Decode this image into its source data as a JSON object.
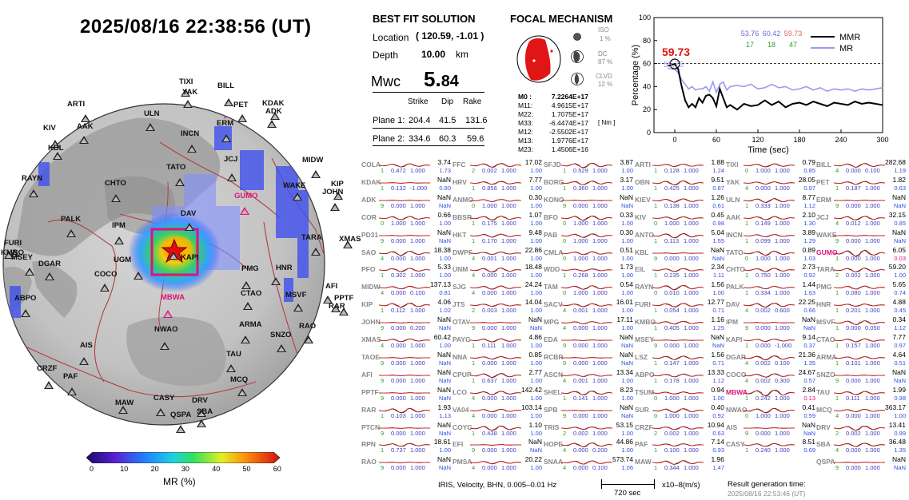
{
  "header": {
    "timestamp": "2025/08/16  22:38:56 (UT)"
  },
  "best_fit": {
    "title": "BEST FIT SOLUTION",
    "location_label": "Location",
    "location_value": "( 120.59,  -1.01 )",
    "depth_label": "Depth",
    "depth_value": "10.00",
    "depth_unit": "km",
    "mw_label": "Mwc",
    "mw_int": "5.",
    "mw_dec": "84",
    "col_strike": "Strike",
    "col_dip": "Dip",
    "col_rake": "Rake",
    "plane1_label": "Plane 1:",
    "plane1": [
      "204.4",
      "41.5",
      "131.6"
    ],
    "plane2_label": "Plane 2:",
    "plane2": [
      "334.6",
      "60.3",
      "59.6"
    ]
  },
  "focal": {
    "title": "FOCAL MECHANISM",
    "iso_label": "ISO",
    "iso_value": "1  %",
    "dc_label": "DC",
    "dc_value": "87 %",
    "clvd_label": "CLVD",
    "clvd_value": "12 %",
    "tensor": [
      {
        "k": "M0  :",
        "v": "7.2264E+17"
      },
      {
        "k": "M11:",
        "v": "4.9615E+17"
      },
      {
        "k": "M22:",
        "v": "1.7075E+17"
      },
      {
        "k": "M33:",
        "v": "-6.4474E+17"
      },
      {
        "k": "M12:",
        "v": "-2.5502E+17"
      },
      {
        "k": "M13:",
        "v": "1.9776E+17"
      },
      {
        "k": "M23:",
        "v": "1.4506E+16"
      }
    ],
    "unit": "[ Nm ]"
  },
  "mr_chart": {
    "peak_label": "59.73",
    "peak_sub": "53.76",
    "stats": [
      "53.76",
      "60.42",
      "59.73"
    ],
    "stats2": [
      "17",
      "18",
      "47"
    ],
    "legend_mmr": "MMR",
    "legend_mr": "MR",
    "colors": {
      "mmr": "#000000",
      "mr": "#9a9af0",
      "peak": "#e01010"
    }
  },
  "chart_data": {
    "type": "line",
    "xlabel": "Time (sec)",
    "ylabel": "Percentage (%)",
    "xlim": [
      -30,
      300
    ],
    "ylim": [
      0,
      100
    ],
    "xticks": [
      "0",
      "60",
      "120",
      "180",
      "240",
      "300"
    ],
    "yticks": [
      "0",
      "20",
      "40",
      "60",
      "80",
      "100"
    ],
    "reference_line": 60,
    "series": [
      {
        "name": "MMR",
        "x": [
          -10,
          0,
          5,
          10,
          15,
          20,
          25,
          30,
          35,
          40,
          45,
          50,
          55,
          60,
          65,
          70,
          75,
          80,
          90,
          100,
          110,
          120,
          130,
          140,
          150,
          160,
          170,
          180,
          190,
          200,
          210,
          220,
          230,
          240,
          250,
          260,
          270,
          280,
          290,
          300
        ],
        "y": [
          58,
          59.7,
          55,
          40,
          28,
          22,
          25,
          22,
          30,
          26,
          32,
          33,
          30,
          23,
          38,
          30,
          22,
          24,
          20,
          25,
          23,
          24,
          28,
          24,
          27,
          22,
          25,
          26,
          24,
          27,
          25,
          23,
          26,
          25,
          24,
          27,
          25,
          26,
          25,
          24
        ]
      },
      {
        "name": "MR",
        "x": [
          -10,
          0,
          5,
          10,
          15,
          20,
          25,
          30,
          35,
          40,
          45,
          50,
          55,
          60,
          65,
          70,
          75,
          80,
          90,
          100,
          110,
          120,
          130,
          140,
          150,
          160,
          170,
          180,
          190,
          200,
          210,
          220,
          230,
          240,
          250,
          260,
          270,
          280,
          290,
          300
        ],
        "y": [
          56,
          55,
          52,
          46,
          42,
          38,
          40,
          37,
          38,
          38,
          40,
          36,
          44,
          35,
          42,
          44,
          37,
          40,
          41,
          40,
          42,
          38,
          39,
          42,
          39,
          40,
          37,
          38,
          40,
          37,
          39,
          36,
          38,
          37,
          38,
          36,
          38,
          37,
          38,
          39
        ]
      }
    ]
  },
  "colorbar": {
    "label": "MR (%)",
    "ticks": [
      "0",
      "10",
      "20",
      "30",
      "40",
      "50",
      "60"
    ]
  },
  "map": {
    "stations": [
      {
        "name": "TIXI"
      },
      {
        "name": "YAK"
      },
      {
        "name": "BILL"
      },
      {
        "name": "PET"
      },
      {
        "name": "KDAK"
      },
      {
        "name": "ADK"
      },
      {
        "name": "ARTI"
      },
      {
        "name": "ULN"
      },
      {
        "name": "ERM"
      },
      {
        "name": "KIV"
      },
      {
        "name": "AAK"
      },
      {
        "name": "KBL"
      },
      {
        "name": "INCN"
      },
      {
        "name": "JCJ"
      },
      {
        "name": "MIDW"
      },
      {
        "name": "TATO"
      },
      {
        "name": "RAYN"
      },
      {
        "name": "CHTO"
      },
      {
        "name": "GUMO"
      },
      {
        "name": "WAKE"
      },
      {
        "name": "JOHN"
      },
      {
        "name": "KIP"
      },
      {
        "name": "DAV"
      },
      {
        "name": "PALK"
      },
      {
        "name": "FURI"
      },
      {
        "name": "IPM"
      },
      {
        "name": "TARA"
      },
      {
        "name": "XMAS"
      },
      {
        "name": "KMBO"
      },
      {
        "name": "MSEY"
      },
      {
        "name": "DGAR"
      },
      {
        "name": "UGM"
      },
      {
        "name": "KAPI"
      },
      {
        "name": "PMG"
      },
      {
        "name": "HNR"
      },
      {
        "name": "COCO"
      },
      {
        "name": "AFI"
      },
      {
        "name": "RAR"
      },
      {
        "name": "PPTF"
      },
      {
        "name": "MSVF"
      },
      {
        "name": "CTAO"
      },
      {
        "name": "MBWA"
      },
      {
        "name": "ABPO"
      },
      {
        "name": "NWAO"
      },
      {
        "name": "ARMA"
      },
      {
        "name": "RAO"
      },
      {
        "name": "AIS"
      },
      {
        "name": "SNZO"
      },
      {
        "name": "TAU"
      },
      {
        "name": "CRZF"
      },
      {
        "name": "PAF"
      },
      {
        "name": "MCQ"
      },
      {
        "name": "MAW"
      },
      {
        "name": "CASY"
      },
      {
        "name": "DRV"
      },
      {
        "name": "SBA"
      },
      {
        "name": "QSPA"
      }
    ]
  },
  "footer": {
    "source": "IRIS,  Velocity,   BHN,  0.005–0.01 Hz",
    "scale_time": "720 sec",
    "scale_amp": "x10–8(m/s)",
    "result_label": "Result generation time:",
    "result_time": "2025/08/16 22:53:46 (UT)"
  },
  "traces": [
    [
      [
        "COLA",
        "3.74",
        "1",
        "0.472",
        "1.000",
        "1.73"
      ],
      [
        "KDAK",
        "NaN",
        "1",
        "0.132",
        "-1.000",
        "0.80"
      ],
      [
        "ADK",
        "NaN",
        "9",
        "0.000",
        "1.000",
        "NaN"
      ],
      [
        "COR",
        "0.66",
        "0",
        "1.000",
        "1.000",
        "1.00"
      ],
      [
        "PD31",
        "NaN",
        "9",
        "0.000",
        "1.000",
        "NaN"
      ],
      [
        "SAO",
        "18.38",
        "4",
        "0.000",
        "1.000",
        "1.00"
      ],
      [
        "PFO",
        "5.33",
        "1",
        "0.302",
        "1.000",
        "1.00"
      ],
      [
        "MIDW",
        "137.13",
        "4",
        "0.000",
        "0.100",
        "0.81"
      ],
      [
        "KIP",
        "4.06",
        "1",
        "0.112",
        "1.000",
        "1.02"
      ],
      [
        "JOHN",
        "NaN",
        "9",
        "0.000",
        "0.200",
        "NaN"
      ],
      [
        "XMAS",
        "60.42",
        "4",
        "0.000",
        "1.000",
        "1.00"
      ],
      [
        "TAOE",
        "NaN",
        "9",
        "0.000",
        "1.000",
        "NaN"
      ],
      [
        "AFI",
        "NaN",
        "9",
        "0.000",
        "1.000",
        "NaN"
      ],
      [
        "PPTF",
        "NaN",
        "9",
        "0.000",
        "1.000",
        "NaN"
      ],
      [
        "RAR",
        "1.93",
        "1",
        "0.103",
        "1.000",
        "1.13"
      ],
      [
        "PTCN",
        "NaN",
        "9",
        "0.000",
        "1.000",
        "NaN"
      ],
      [
        "RPN",
        "18.61",
        "1",
        "0.737",
        "1.000",
        "1.00"
      ],
      [
        "RAO",
        "NaN",
        "9",
        "0.000",
        "1.000",
        "NaN"
      ]
    ],
    [
      [
        "FFC",
        "17.02",
        "2",
        "0.002",
        "1.000",
        "1.00"
      ],
      [
        "HRV",
        "7.77",
        "1",
        "0.856",
        "1.000",
        "1.00"
      ],
      [
        "ANMO",
        "0.30",
        "0",
        "1.000",
        "1.000",
        "1.00"
      ],
      [
        "BBSR",
        "1.07",
        "1",
        "0.175",
        "1.000",
        "1.00"
      ],
      [
        "HKT",
        "9.48",
        "1",
        "0.170",
        "1.000",
        "1.00"
      ],
      [
        "DWPF",
        "22.86",
        "4",
        "0.001",
        "1.000",
        "1.00"
      ],
      [
        "UNM",
        "18.48",
        "4",
        "0.000",
        "1.000",
        "1.00"
      ],
      [
        "SJG",
        "24.24",
        "4",
        "0.000",
        "1.000",
        "1.00"
      ],
      [
        "JTS",
        "14.04",
        "2",
        "0.003",
        "1.000",
        "1.00"
      ],
      [
        "OTAV",
        "NaN",
        "9",
        "0.000",
        "1.000",
        "NaN"
      ],
      [
        "PAYG",
        "4.86",
        "1",
        "0.111",
        "1.000",
        "1.00"
      ],
      [
        "NNA",
        "0.85",
        "1",
        "0.000",
        "1.000",
        "1.00"
      ],
      [
        "CPUP",
        "2.77",
        "1",
        "0.637",
        "1.000",
        "1.00"
      ],
      [
        "LCO",
        "142.42",
        "4",
        "0.000",
        "1.000",
        "1.00"
      ],
      [
        "VA04",
        "103.14",
        "4",
        "0.000",
        "1.000",
        "1.00"
      ],
      [
        "COYC",
        "1.10",
        "1",
        "0.438",
        "1.000",
        "1.00"
      ],
      [
        "EFI",
        "NaN",
        "9",
        "0.000",
        "1.000",
        "NaN"
      ],
      [
        "PMSA",
        "20.22",
        "4",
        "0.000",
        "1.000",
        "1.00"
      ]
    ],
    [
      [
        "SFJD",
        "3.87",
        "1",
        "0.529",
        "1.000",
        "1.00"
      ],
      [
        "BORG",
        "3.17",
        "1",
        "0.360",
        "1.000",
        "1.00"
      ],
      [
        "KONO",
        "NaN",
        "9",
        "0.000",
        "1.000",
        "NaN"
      ],
      [
        "BFO",
        "0.33",
        "0",
        "1.000",
        "1.000",
        "1.00"
      ],
      [
        "PAB",
        "0.30",
        "0",
        "1.000",
        "1.000",
        "1.00"
      ],
      [
        "CMLA",
        "0.51",
        "0",
        "1.000",
        "1.000",
        "1.00"
      ],
      [
        "WDD",
        "1.73",
        "1",
        "0.268",
        "1.000",
        "1.00"
      ],
      [
        "TAM",
        "0.54",
        "0",
        "1.000",
        "1.000",
        "1.00"
      ],
      [
        "SACV",
        "16.01",
        "4",
        "0.001",
        "1.000",
        "1.00"
      ],
      [
        "MPG",
        "17.11",
        "4",
        "0.000",
        "1.000",
        "1.00"
      ],
      [
        "EDA",
        "NaN",
        "9",
        "0.000",
        "1.000",
        "NaN"
      ],
      [
        "RCBR",
        "NaN",
        "9",
        "0.000",
        "1.000",
        "NaN"
      ],
      [
        "ASCN",
        "13.34",
        "4",
        "0.001",
        "1.000",
        "1.00"
      ],
      [
        "SHEL",
        "8.23",
        "1",
        "0.141",
        "1.000",
        "1.00"
      ],
      [
        "SPB",
        "NaN",
        "9",
        "0.000",
        "1.000",
        "NaN"
      ],
      [
        "TRIS",
        "53.15",
        "2",
        "0.002",
        "1.000",
        "1.00"
      ],
      [
        "HOPE",
        "44.86",
        "4",
        "0.000",
        "0.200",
        "1.00"
      ],
      [
        "SNAA",
        "573.74",
        "4",
        "0.000",
        "0.100",
        "1.06"
      ]
    ],
    [
      [
        "ARTI",
        "1.88",
        "1",
        "0.128",
        "1.000",
        "1.24"
      ],
      [
        "OBN",
        "9.51",
        "1",
        "0.425",
        "1.000",
        "0.87"
      ],
      [
        "KIEV",
        "1.26",
        "1",
        "0.138",
        "1.000",
        "0.61"
      ],
      [
        "KIV",
        "0.45",
        "0",
        "1.000",
        "1.000",
        "0.98"
      ],
      [
        "ANTO",
        "5.04",
        "1",
        "0.113",
        "1.000",
        "1.55"
      ],
      [
        "KBL",
        "NaN",
        "9",
        "0.000",
        "1.000",
        "NaN"
      ],
      [
        "EIL",
        "2.34",
        "1",
        "0.235",
        "1.000",
        "1.11"
      ],
      [
        "RAYN",
        "1.56",
        "0",
        "0.010",
        "1.000",
        "1.00"
      ],
      [
        "FURI",
        "12.77",
        "1",
        "0.054",
        "1.000",
        "0.71"
      ],
      [
        "KMBO",
        "1.16",
        "1",
        "0.405",
        "1.000",
        "1.25"
      ],
      [
        "MSEY",
        "NaN",
        "9",
        "0.000",
        "1.000",
        "NaN"
      ],
      [
        "LSZ",
        "1.56",
        "1",
        "0.147",
        "1.000",
        "0.71"
      ],
      [
        "ABPO",
        "13.33",
        "1",
        "0.178",
        "1.000",
        "1.12"
      ],
      [
        "TSUM",
        "0.94",
        "0",
        "1.000",
        "1.000",
        "1.00"
      ],
      [
        "SUR",
        "0.40",
        "0",
        "1.000",
        "1.000",
        "0.92"
      ],
      [
        "CRZF",
        "10.94",
        "2",
        "0.002",
        "1.000",
        "0.63"
      ],
      [
        "PAF",
        "7.14",
        "1",
        "0.100",
        "1.000",
        "0.93"
      ],
      [
        "MAW",
        "1.96",
        "1",
        "0.344",
        "1.000",
        "1.47"
      ]
    ],
    [
      [
        "TIXI",
        "0.79",
        "0",
        "1.000",
        "1.000",
        "0.85"
      ],
      [
        "YAK",
        "28.05",
        "4",
        "0.000",
        "1.000",
        "0.97"
      ],
      [
        "ULN",
        "8.77",
        "1",
        "0.333",
        "1.000",
        "1.12"
      ],
      [
        "AAK",
        "2.10",
        "1",
        "0.149",
        "1.000",
        "1.30"
      ],
      [
        "INCN",
        "3.89",
        "1",
        "0.099",
        "1.000",
        "1.29"
      ],
      [
        "TATO",
        "0.89",
        "0",
        "1.000",
        "1.000",
        "1.03"
      ],
      [
        "CHTO",
        "2.73",
        "1",
        "0.750",
        "1.000",
        "0.92"
      ],
      [
        "PALK",
        "1.44",
        "1",
        "0.334",
        "1.000",
        "1.63"
      ],
      [
        "DAV",
        "22.25",
        "4",
        "0.002",
        "0.600",
        "0.66"
      ],
      [
        "IPM",
        "NaN",
        "9",
        "0.000",
        "1.000",
        "NaN"
      ],
      [
        "KAPI",
        "9.14",
        "1",
        "0.000",
        "-1.000",
        "0.37"
      ],
      [
        "DGAR",
        "21.36",
        "4",
        "0.002",
        "0.100",
        "1.35"
      ],
      [
        "COCO",
        "24.67",
        "4",
        "0.002",
        "0.300",
        "0.57"
      ],
      [
        "MBWA",
        "2.84",
        "1",
        "0.242",
        "1.000",
        "0.13"
      ],
      [
        "NWAO",
        "0.41",
        "0",
        "1.000",
        "1.000",
        "0.59"
      ],
      [
        "AIS",
        "NaN",
        "9",
        "0.000",
        "1.000",
        "NaN"
      ],
      [
        "CASY",
        "8.51",
        "1",
        "0.240",
        "1.000",
        "0.69"
      ],
      [
        "",
        "",
        "",
        "",
        "",
        ""
      ]
    ],
    [
      [
        "BILL",
        "282.68",
        "4",
        "0.000",
        "0.100",
        "1.19"
      ],
      [
        "PET",
        "1.82",
        "1",
        "0.187",
        "1.000",
        "0.63"
      ],
      [
        "ERM",
        "NaN",
        "9",
        "0.000",
        "1.000",
        "NaN"
      ],
      [
        "JCJ",
        "32.15",
        "4",
        "0.012",
        "1.000",
        "0.85"
      ],
      [
        "WAKE",
        "NaN",
        "9",
        "0.000",
        "1.000",
        "NaN"
      ],
      [
        "GUMO",
        "6.05",
        "1",
        "0.000",
        "1.000",
        "0.03"
      ],
      [
        "TARA",
        "59.20",
        "2",
        "0.002",
        "1.000",
        "1.00"
      ],
      [
        "PMG",
        "5.65",
        "1",
        "0.080",
        "1.000",
        "0.74"
      ],
      [
        "HNR",
        "4.88",
        "1",
        "0.201",
        "1.000",
        "0.45"
      ],
      [
        "MSVF",
        "0.34",
        "1",
        "0.000",
        "0.050",
        "1.12"
      ],
      [
        "CTAO",
        "7.77",
        "1",
        "0.157",
        "1.000",
        "0.97"
      ],
      [
        "ARMA",
        "4.64",
        "1",
        "0.101",
        "1.000",
        "0.51"
      ],
      [
        "SNZO",
        "NaN",
        "9",
        "0.000",
        "1.000",
        "NaN"
      ],
      [
        "TAU",
        "1.99",
        "1",
        "0.111",
        "1.000",
        "0.98"
      ],
      [
        "MCQ",
        "363.17",
        "4",
        "0.000",
        "1.000",
        "1.00"
      ],
      [
        "DRV",
        "13.41",
        "2",
        "0.002",
        "1.000",
        "0.99"
      ],
      [
        "SBA",
        "36.48",
        "4",
        "0.000",
        "1.000",
        "1.35"
      ],
      [
        "QSPA",
        "NaN",
        "9",
        "0.000",
        "1.000",
        "NaN"
      ]
    ]
  ]
}
